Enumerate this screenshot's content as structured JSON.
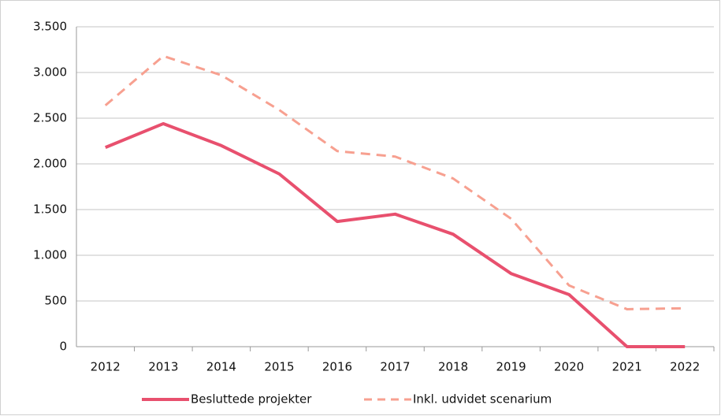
{
  "chart_data": {
    "type": "line",
    "categories": [
      "2012",
      "2013",
      "2014",
      "2015",
      "2016",
      "2017",
      "2018",
      "2019",
      "2020",
      "2021",
      "2022"
    ],
    "series": [
      {
        "name": "Besluttede projekter",
        "color": "#e8506e",
        "dash": false,
        "values": [
          2180,
          2440,
          2200,
          1890,
          1370,
          1450,
          1230,
          800,
          570,
          0,
          0
        ]
      },
      {
        "name": "Inkl. udvidet scenarium",
        "color": "#f7a090",
        "dash": true,
        "values": [
          2640,
          3180,
          2970,
          2590,
          2140,
          2080,
          1840,
          1400,
          670,
          410,
          420
        ]
      }
    ],
    "ylim": [
      0,
      3500
    ],
    "yticks": [
      0,
      500,
      {
        "value": 1000,
        "label": "1.000"
      },
      {
        "value": 1500,
        "label": "1.500"
      },
      {
        "value": 2000,
        "label": "2.000"
      },
      {
        "value": 2500,
        "label": "2.500"
      },
      {
        "value": 3000,
        "label": "3.000"
      },
      {
        "value": 3500,
        "label": "3.500"
      }
    ],
    "grid": true,
    "legend": "bottom"
  }
}
